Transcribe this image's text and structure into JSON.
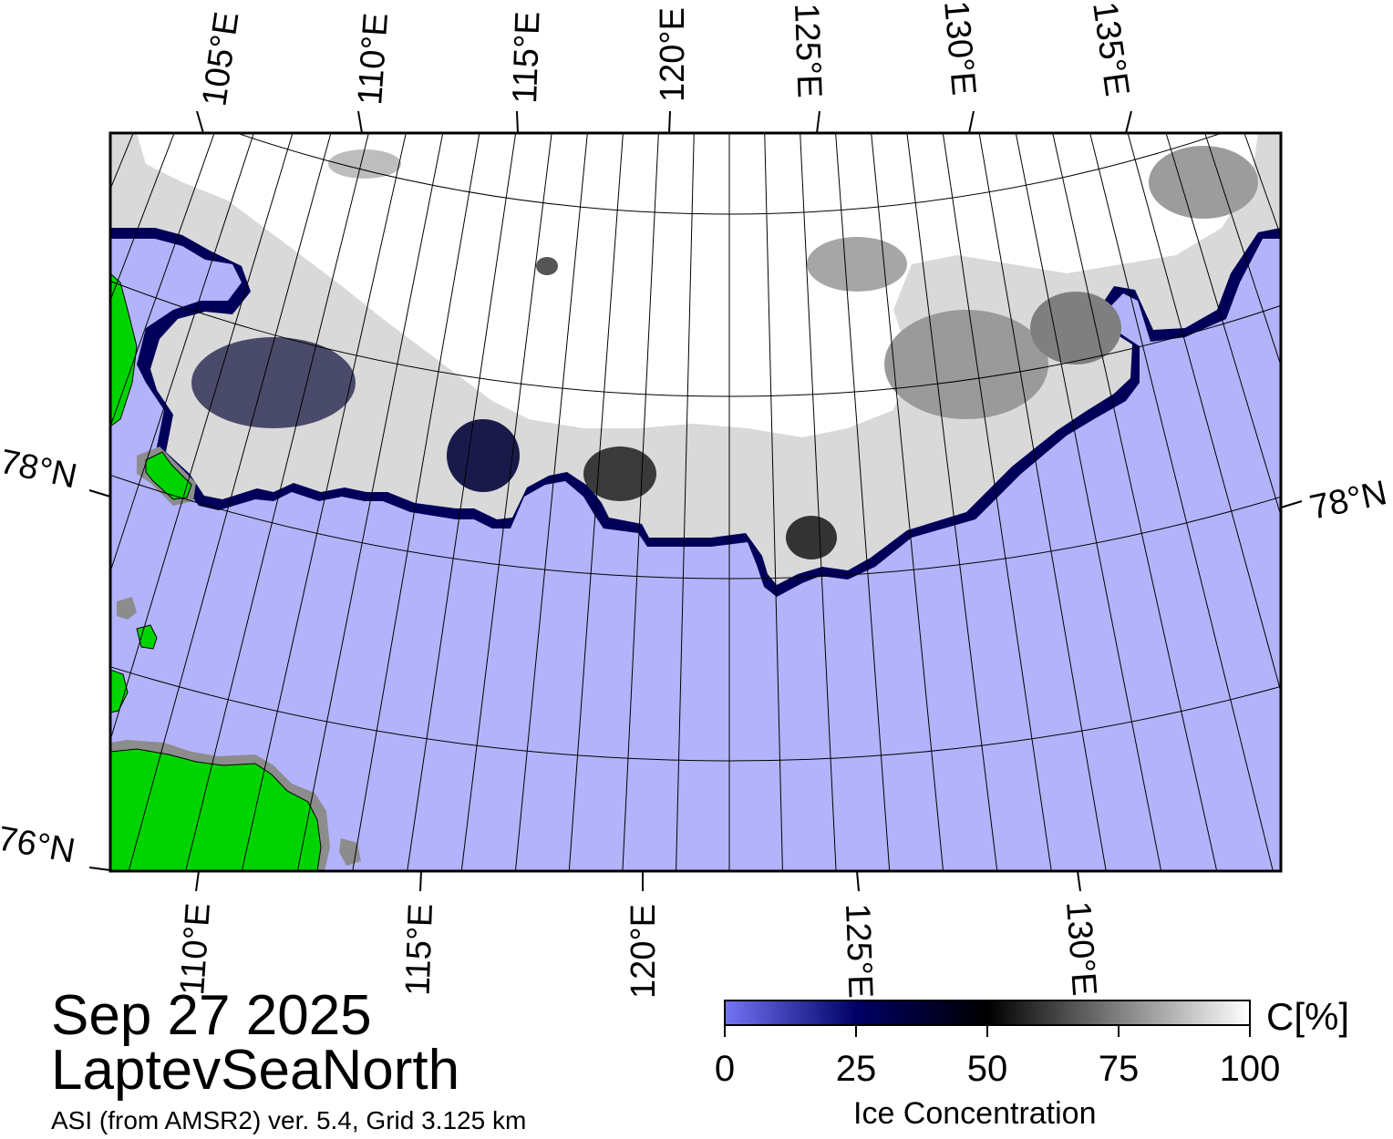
{
  "map": {
    "date": "Sep 27 2025",
    "region": "LaptevSeaNorth",
    "source": "ASI (from AMSR2) ver. 5.4,  Grid 3.125 km",
    "top_lon_labels": [
      "105°E",
      "110°E",
      "115°E",
      "120°E",
      "125°E",
      "130°E",
      "135°E"
    ],
    "bottom_lon_labels": [
      "110°E",
      "115°E",
      "120°E",
      "125°E",
      "130°E"
    ],
    "left_lat_labels": [
      "78°N",
      "76°N"
    ],
    "right_lat_labels": [
      "78°N"
    ],
    "colors": {
      "open_water": "#b3b3fb",
      "land": "#00d400",
      "coast_gray": "#8c8c8c",
      "ice_full": "#ffffff"
    }
  },
  "colorbar": {
    "title": "Ice Concentration",
    "unit_label": "C[%]",
    "ticks": [
      "0",
      "25",
      "50",
      "75",
      "100"
    ],
    "stops": [
      {
        "value": 0,
        "color": "#7474f6"
      },
      {
        "value": 25,
        "color": "#000066"
      },
      {
        "value": 50,
        "color": "#000000"
      },
      {
        "value": 100,
        "color": "#ffffff"
      }
    ]
  }
}
